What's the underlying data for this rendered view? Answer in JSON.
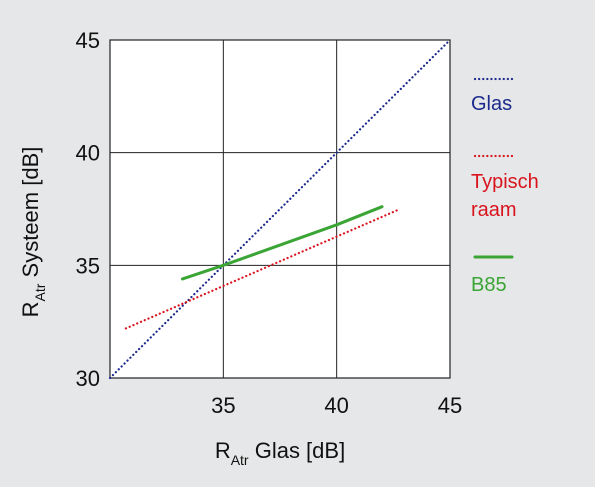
{
  "chart_data": {
    "type": "line",
    "title": "",
    "xlabel": {
      "main": "R",
      "sub": "Atr",
      "rest": " Glas [dB]"
    },
    "ylabel": {
      "main": "R",
      "sub": "Atr",
      "rest": " Systeem [dB]"
    },
    "xlim": [
      30,
      45
    ],
    "ylim": [
      30,
      45
    ],
    "xticks": [
      35,
      40,
      45
    ],
    "yticks": [
      30,
      35,
      40,
      45
    ],
    "grid": true,
    "legend_position": "right",
    "series": [
      {
        "name": "Glas",
        "color": "#1b2a8c",
        "style": "dotted",
        "x": [
          30,
          45
        ],
        "y": [
          30,
          45
        ]
      },
      {
        "name": "Typisch raam",
        "color": "#d9141e",
        "style": "dotted",
        "x": [
          30.7,
          42.8
        ],
        "y": [
          32.2,
          37.5
        ]
      },
      {
        "name": "B85",
        "color": "#3aa535",
        "style": "solid",
        "x": [
          33.2,
          35,
          37.5,
          40,
          42
        ],
        "y": [
          34.4,
          35,
          35.9,
          36.8,
          37.6
        ]
      }
    ],
    "legend": [
      {
        "label_lines": [
          "Glas"
        ],
        "color": "#1b2a8c",
        "style": "dotted"
      },
      {
        "label_lines": [
          "Typisch",
          "raam"
        ],
        "color": "#d9141e",
        "style": "dotted"
      },
      {
        "label_lines": [
          "B85"
        ],
        "color": "#3aa535",
        "style": "solid"
      }
    ]
  }
}
